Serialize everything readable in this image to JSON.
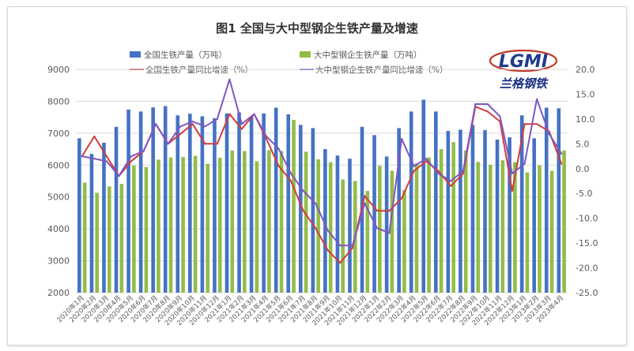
{
  "chart_data": {
    "type": "bar",
    "title": "图1 全国与大中型钢企生铁产量及增速",
    "logo": {
      "mark": "LGMI",
      "caption": "兰格钢铁",
      "colors": {
        "mark": "#1f3a8f",
        "ring": "#c0392b",
        "caption": "#1a2f80"
      }
    },
    "categories": [
      "2020年1月",
      "2020年2月",
      "2020年3月",
      "2020年4月",
      "2020年5月",
      "2020年6月",
      "2020年7月",
      "2020年8月",
      "2020年9月",
      "2020年10月",
      "2020年11月",
      "2020年12月",
      "2021年1月",
      "2021年2月",
      "2021年3月",
      "2021年4月",
      "2021年5月",
      "2021年6月",
      "2021年7月",
      "2021年8月",
      "2021年9月",
      "2021年10月",
      "2021年11月",
      "2021年12月",
      "2022年1月",
      "2022年2月",
      "2022年3月",
      "2022年4月",
      "2022年5月",
      "2022年6月",
      "2022年7月",
      "2022年8月",
      "2022年9月",
      "2022年10月",
      "2022年11月",
      "2022年12月",
      "2023年1月",
      "2023年2月",
      "2023年3月",
      "2023年4月"
    ],
    "y_left": {
      "min": 2000,
      "max": 9000,
      "step": 1000
    },
    "y_right": {
      "min": -25.0,
      "max": 20.0,
      "step": 5.0
    },
    "grid": true,
    "legend_position": "top",
    "series": [
      {
        "name": "全国生铁产量（万吨）",
        "type": "bar",
        "axis": "left",
        "color": "#4472c4",
        "values": [
          6840,
          6350,
          6700,
          7200,
          7740,
          7680,
          7810,
          7850,
          7560,
          7610,
          7530,
          7470,
          7620,
          7650,
          7520,
          7620,
          7800,
          7590,
          7260,
          7160,
          6500,
          6300,
          6200,
          7200,
          6940,
          6270,
          7160,
          7680,
          8050,
          7680,
          7070,
          7110,
          7260,
          7100,
          6800,
          6870,
          7560,
          6840,
          7800,
          7780
        ]
      },
      {
        "name": "大中型钢企生铁产量（万吨）",
        "type": "bar",
        "axis": "left",
        "color": "#92bd48",
        "values": [
          5450,
          5130,
          5330,
          5410,
          5990,
          5940,
          6170,
          6240,
          6250,
          6290,
          6040,
          6230,
          6460,
          6440,
          6120,
          6470,
          6440,
          7420,
          6420,
          6180,
          6090,
          5550,
          5500,
          5190,
          5980,
          5820,
          5220,
          6050,
          6240,
          6500,
          6720,
          6460,
          6100,
          6010,
          6150,
          6090,
          5770,
          5990,
          5820,
          6460
        ]
      },
      {
        "name": "全国生铁产量同比增速（%）",
        "type": "line",
        "axis": "right",
        "color": "#d13c3c",
        "values": [
          2.5,
          6.5,
          2.5,
          -1.5,
          1.5,
          3.5,
          9.0,
          5.0,
          7.0,
          9.0,
          5.0,
          5.0,
          11.0,
          8.0,
          11.0,
          6.0,
          0.5,
          -2.5,
          -8.5,
          -12.0,
          -16.5,
          -19.0,
          -16.0,
          -5.5,
          -8.5,
          -8.5,
          -6.0,
          -0.5,
          1.5,
          -0.5,
          -3.5,
          -1.0,
          12.5,
          11.5,
          9.5,
          -4.5,
          9.0,
          9.0,
          7.5,
          1.0
        ]
      },
      {
        "name": "大中型钢企生铁产量同比增速（%）",
        "type": "line",
        "axis": "right",
        "color": "#7e57c2",
        "values": [
          2.5,
          2.0,
          1.5,
          -1.5,
          2.5,
          3.5,
          9.0,
          5.0,
          8.5,
          9.5,
          8.5,
          10.0,
          18.0,
          9.0,
          11.0,
          6.5,
          4.0,
          -1.0,
          -4.5,
          -7.0,
          -12.5,
          -15.5,
          -15.5,
          -7.0,
          -12.0,
          -13.0,
          6.0,
          0.5,
          2.0,
          -1.0,
          -2.5,
          -0.5,
          13.0,
          13.0,
          10.5,
          -1.0,
          1.0,
          14.0,
          7.0,
          3.0
        ]
      }
    ]
  }
}
